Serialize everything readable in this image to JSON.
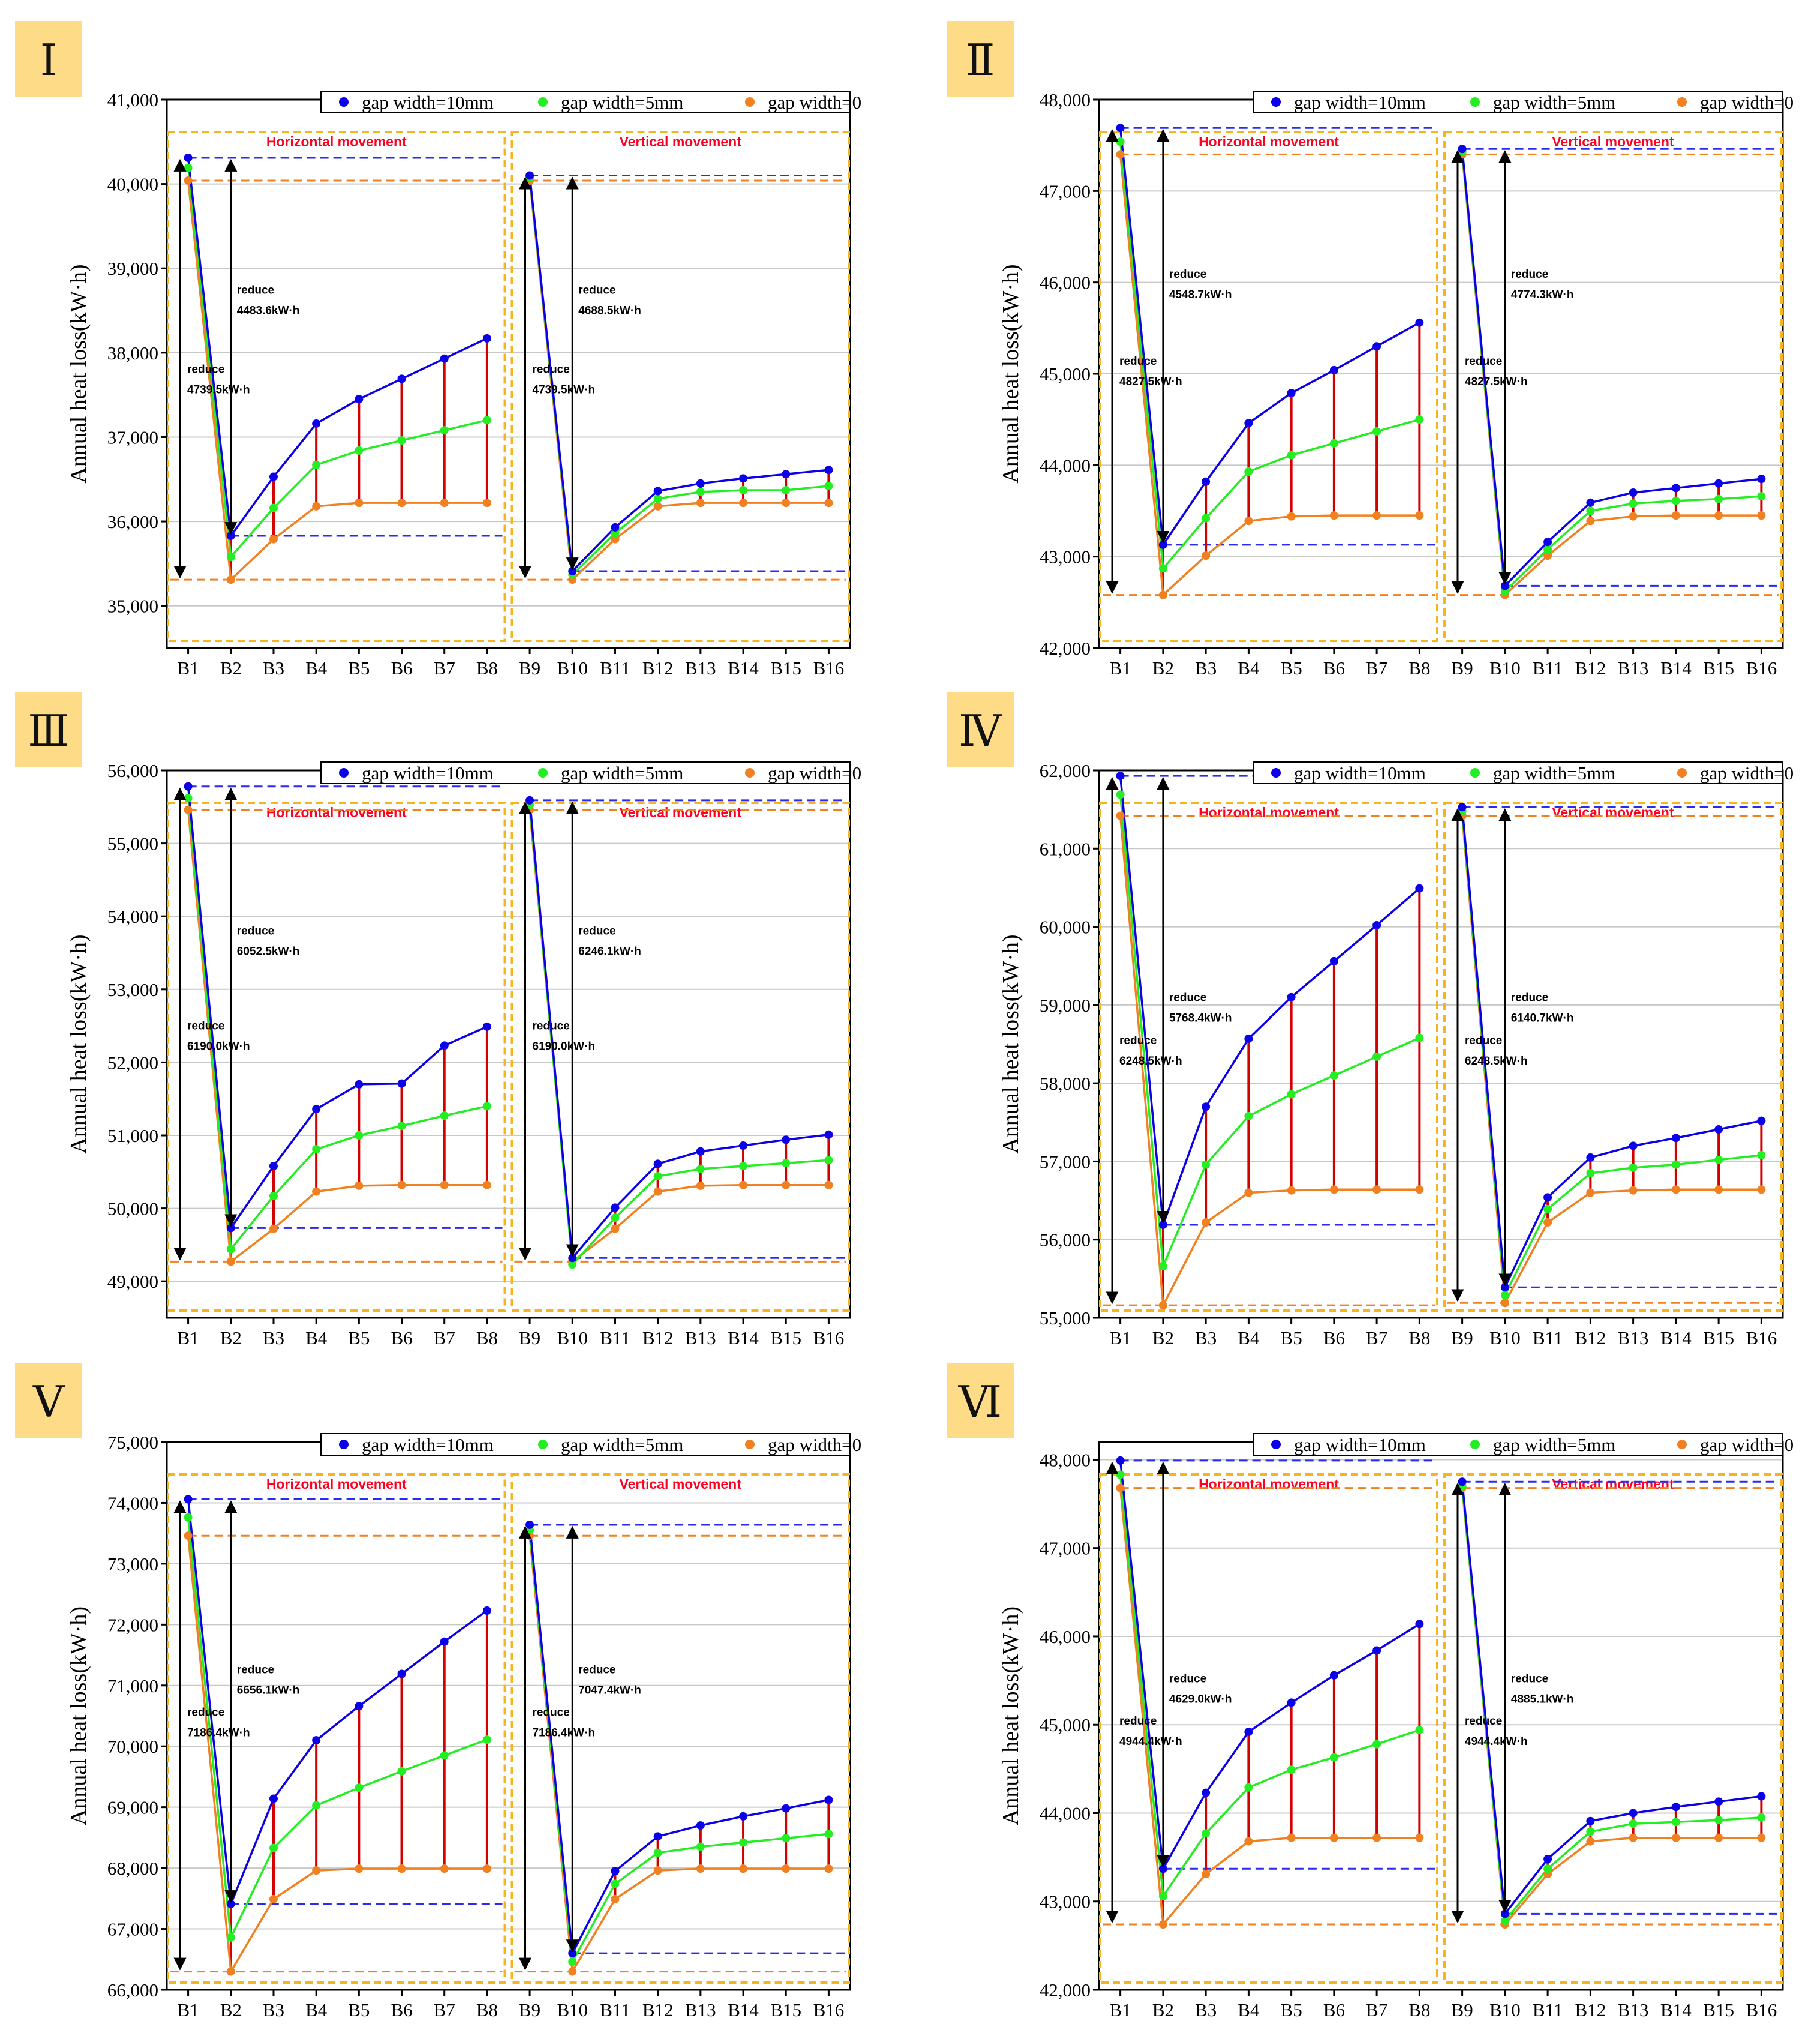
{
  "legend": [
    "gap width=10mm",
    "gap width=5mm",
    "gap width=0"
  ],
  "regions": [
    "Horizontal movement",
    "Vertical movement"
  ],
  "colors": {
    "s10": "#0b00e8",
    "s5": "#22ee22",
    "s0": "#f08020",
    "drop": "#d40000",
    "frame": "#f6b51c",
    "badge": "#fddb87",
    "region": "#ff0022",
    "dash10": "#2a2af0",
    "dash0": "#f08020"
  },
  "chart_data": [
    {
      "type": "line",
      "label": "Ⅰ",
      "ylabel": "Annual heat loss(kW·h)",
      "ylim": [
        34500,
        41000
      ],
      "yticks": [
        "35,000",
        "36,000",
        "37,000",
        "38,000",
        "39,000",
        "40,000",
        "41,000"
      ],
      "categories": [
        "B1",
        "B2",
        "B3",
        "B4",
        "B5",
        "B6",
        "B7",
        "B8",
        "B9",
        "B10",
        "B11",
        "B12",
        "B13",
        "B14",
        "B15",
        "B16"
      ],
      "series": [
        {
          "name": "gap width=10mm",
          "values": [
            40310,
            35830,
            36530,
            37160,
            37450,
            37690,
            37930,
            38170,
            40100,
            35410,
            35930,
            36360,
            36450,
            36510,
            36560,
            36610
          ]
        },
        {
          "name": "gap width=5mm",
          "values": [
            40190,
            35580,
            36160,
            36670,
            36840,
            36960,
            37080,
            37200,
            40080,
            35370,
            35860,
            36270,
            36350,
            36370,
            36370,
            36420
          ]
        },
        {
          "name": "gap width=0",
          "values": [
            40040,
            35310,
            35790,
            36180,
            36220,
            36220,
            36220,
            36220,
            40040,
            35310,
            35790,
            36180,
            36220,
            36220,
            36220,
            36220
          ]
        }
      ],
      "annotations": [
        {
          "text": "reduce",
          "value": "4739.5kW·h",
          "xi": 0,
          "yv": 37760
        },
        {
          "text": "reduce",
          "value": "4483.6kW·h",
          "xi": 1,
          "yv": 38700
        },
        {
          "text": "reduce",
          "value": "4739.5kW·h",
          "xi": 8,
          "yv": 37760
        },
        {
          "text": "reduce",
          "value": "4688.5kW·h",
          "xi": 9,
          "yv": 38700
        }
      ]
    },
    {
      "type": "line",
      "label": "Ⅱ",
      "ylabel": "Annual heat loss(kW·h)",
      "ylim": [
        42000,
        48000
      ],
      "yticks": [
        "42,000",
        "43,000",
        "44,000",
        "45,000",
        "46,000",
        "47,000",
        "48,000"
      ],
      "categories": [
        "B1",
        "B2",
        "B3",
        "B4",
        "B5",
        "B6",
        "B7",
        "B8",
        "B9",
        "B10",
        "B11",
        "B12",
        "B13",
        "B14",
        "B15",
        "B16"
      ],
      "series": [
        {
          "name": "gap width=10mm",
          "values": [
            47690,
            43130,
            43820,
            44460,
            44790,
            45040,
            45300,
            45560,
            47460,
            42680,
            43160,
            43590,
            43700,
            43750,
            43800,
            43850
          ]
        },
        {
          "name": "gap width=5mm",
          "values": [
            47540,
            42870,
            43420,
            43930,
            44110,
            44240,
            44370,
            44500,
            47430,
            42620,
            43080,
            43500,
            43580,
            43610,
            43630,
            43660
          ]
        },
        {
          "name": "gap width=0",
          "values": [
            47400,
            42580,
            43010,
            43390,
            43440,
            43450,
            43450,
            43450,
            47400,
            42580,
            43010,
            43390,
            43440,
            43450,
            43450,
            43450
          ]
        }
      ],
      "annotations": [
        {
          "text": "reduce",
          "value": "4827.5kW·h",
          "xi": 0,
          "yv": 45100
        },
        {
          "text": "reduce",
          "value": "4548.7kW·h",
          "xi": 1,
          "yv": 46050
        },
        {
          "text": "reduce",
          "value": "4827.5kW·h",
          "xi": 8,
          "yv": 45100
        },
        {
          "text": "reduce",
          "value": "4774.3kW·h",
          "xi": 9,
          "yv": 46050
        }
      ]
    },
    {
      "type": "line",
      "label": "Ⅲ",
      "ylabel": "Annual heat loss(kW·h)",
      "ylim": [
        48500,
        56000
      ],
      "yticks": [
        "49,000",
        "50,000",
        "51,000",
        "52,000",
        "53,000",
        "54,000",
        "55,000",
        "56,000"
      ],
      "categories": [
        "B1",
        "B2",
        "B3",
        "B4",
        "B5",
        "B6",
        "B7",
        "B8",
        "B9",
        "B10",
        "B11",
        "B12",
        "B13",
        "B14",
        "B15",
        "B16"
      ],
      "series": [
        {
          "name": "gap width=10mm",
          "values": [
            55780,
            49730,
            50580,
            51360,
            51700,
            51710,
            52230,
            52490,
            55590,
            49320,
            50010,
            50610,
            50780,
            50860,
            50940,
            51010
          ]
        },
        {
          "name": "gap width=5mm",
          "values": [
            55620,
            49440,
            50170,
            50810,
            51000,
            51130,
            51270,
            51400,
            55530,
            49230,
            49870,
            50440,
            50540,
            50580,
            50620,
            50660
          ]
        },
        {
          "name": "gap width=0",
          "values": [
            55460,
            49270,
            49720,
            50230,
            50310,
            50320,
            50320,
            50320,
            55460,
            49270,
            49720,
            50230,
            50310,
            50320,
            50320,
            50320
          ]
        }
      ],
      "annotations": [
        {
          "text": "reduce",
          "value": "6190.0kW·h",
          "xi": 0,
          "yv": 52450
        },
        {
          "text": "reduce",
          "value": "6052.5kW·h",
          "xi": 1,
          "yv": 53750
        },
        {
          "text": "reduce",
          "value": "6190.0kW·h",
          "xi": 8,
          "yv": 52450
        },
        {
          "text": "reduce",
          "value": "6246.1kW·h",
          "xi": 9,
          "yv": 53750
        }
      ]
    },
    {
      "type": "line",
      "label": "Ⅳ",
      "ylabel": "Annual heat loss(kW·h)",
      "ylim": [
        55000,
        62000
      ],
      "yticks": [
        "55,000",
        "56,000",
        "57,000",
        "58,000",
        "59,000",
        "60,000",
        "61,000",
        "62,000"
      ],
      "categories": [
        "B1",
        "B2",
        "B3",
        "B4",
        "B5",
        "B6",
        "B7",
        "B8",
        "B9",
        "B10",
        "B11",
        "B12",
        "B13",
        "B14",
        "B15",
        "B16"
      ],
      "series": [
        {
          "name": "gap width=10mm",
          "values": [
            61930,
            56190,
            57700,
            58570,
            59100,
            59560,
            60020,
            60490,
            61530,
            55390,
            56540,
            57050,
            57200,
            57300,
            57410,
            57520
          ]
        },
        {
          "name": "gap width=5mm",
          "values": [
            61690,
            55660,
            56960,
            57580,
            57860,
            58100,
            58340,
            58580,
            61480,
            55290,
            56390,
            56850,
            56920,
            56960,
            57020,
            57080
          ]
        },
        {
          "name": "gap width=0",
          "values": [
            61420,
            55160,
            56220,
            56600,
            56630,
            56640,
            56640,
            56640,
            61420,
            55190,
            56220,
            56600,
            56630,
            56640,
            56640,
            56640
          ]
        }
      ],
      "annotations": [
        {
          "text": "reduce",
          "value": "6248.5kW·h",
          "xi": 0,
          "yv": 58500
        },
        {
          "text": "reduce",
          "value": "5768.4kW·h",
          "xi": 1,
          "yv": 59050
        },
        {
          "text": "reduce",
          "value": "6248.5kW·h",
          "xi": 8,
          "yv": 58500
        },
        {
          "text": "reduce",
          "value": "6140.7kW·h",
          "xi": 9,
          "yv": 59050
        }
      ]
    },
    {
      "type": "line",
      "label": "Ⅴ",
      "ylabel": "Annual heat loss(kW·h)",
      "ylim": [
        66000,
        75000
      ],
      "yticks": [
        "66,000",
        "67,000",
        "68,000",
        "69,000",
        "70,000",
        "71,000",
        "72,000",
        "73,000",
        "74,000",
        "75,000"
      ],
      "categories": [
        "B1",
        "B2",
        "B3",
        "B4",
        "B5",
        "B6",
        "B7",
        "B8",
        "B9",
        "B10",
        "B11",
        "B12",
        "B13",
        "B14",
        "B15",
        "B16"
      ],
      "series": [
        {
          "name": "gap width=10mm",
          "values": [
            74060,
            67410,
            69140,
            70100,
            70660,
            71190,
            71720,
            72230,
            73640,
            66600,
            67950,
            68520,
            68700,
            68850,
            68980,
            69120
          ]
        },
        {
          "name": "gap width=5mm",
          "values": [
            73760,
            66860,
            68330,
            69030,
            69320,
            69590,
            69850,
            70110,
            73550,
            66460,
            67740,
            68250,
            68350,
            68420,
            68490,
            68560
          ]
        },
        {
          "name": "gap width=0",
          "values": [
            73460,
            66300,
            67490,
            67960,
            67990,
            67990,
            67990,
            67990,
            73460,
            66300,
            67490,
            67960,
            67990,
            67990,
            67990,
            67990
          ]
        }
      ],
      "annotations": [
        {
          "text": "reduce",
          "value": "7186.4kW·h",
          "xi": 0,
          "yv": 70500
        },
        {
          "text": "reduce",
          "value": "6656.1kW·h",
          "xi": 1,
          "yv": 71200
        },
        {
          "text": "reduce",
          "value": "7186.4kW·h",
          "xi": 8,
          "yv": 70500
        },
        {
          "text": "reduce",
          "value": "7047.4kW·h",
          "xi": 9,
          "yv": 71200
        }
      ]
    },
    {
      "type": "line",
      "label": "Ⅵ",
      "ylabel": "Annual heat loss(kW·h)",
      "ylim": [
        42000,
        48200
      ],
      "yticks": [
        "42,000",
        "43,000",
        "44,000",
        "45,000",
        "46,000",
        "47,000",
        "48,000"
      ],
      "categories": [
        "B1",
        "B2",
        "B3",
        "B4",
        "B5",
        "B6",
        "B7",
        "B8",
        "B9",
        "B10",
        "B11",
        "B12",
        "B13",
        "B14",
        "B15",
        "B16"
      ],
      "series": [
        {
          "name": "gap width=10mm",
          "values": [
            47990,
            43370,
            44230,
            44920,
            45250,
            45560,
            45840,
            46140,
            47750,
            42860,
            43480,
            43910,
            44000,
            44070,
            44130,
            44190
          ]
        },
        {
          "name": "gap width=5mm",
          "values": [
            47830,
            43060,
            43770,
            44290,
            44490,
            44630,
            44780,
            44940,
            47700,
            42780,
            43370,
            43790,
            43880,
            43900,
            43920,
            43950
          ]
        },
        {
          "name": "gap width=0",
          "values": [
            47680,
            42740,
            43310,
            43680,
            43720,
            43720,
            43720,
            43720,
            47680,
            42740,
            43310,
            43680,
            43720,
            43720,
            43720,
            43720
          ]
        }
      ],
      "annotations": [
        {
          "text": "reduce",
          "value": "4944.4kW·h",
          "xi": 0,
          "yv": 45000
        },
        {
          "text": "reduce",
          "value": "4629.0kW·h",
          "xi": 1,
          "yv": 45480
        },
        {
          "text": "reduce",
          "value": "4944.4kW·h",
          "xi": 8,
          "yv": 45000
        },
        {
          "text": "reduce",
          "value": "4885.1kW·h",
          "xi": 9,
          "yv": 45480
        }
      ]
    }
  ]
}
